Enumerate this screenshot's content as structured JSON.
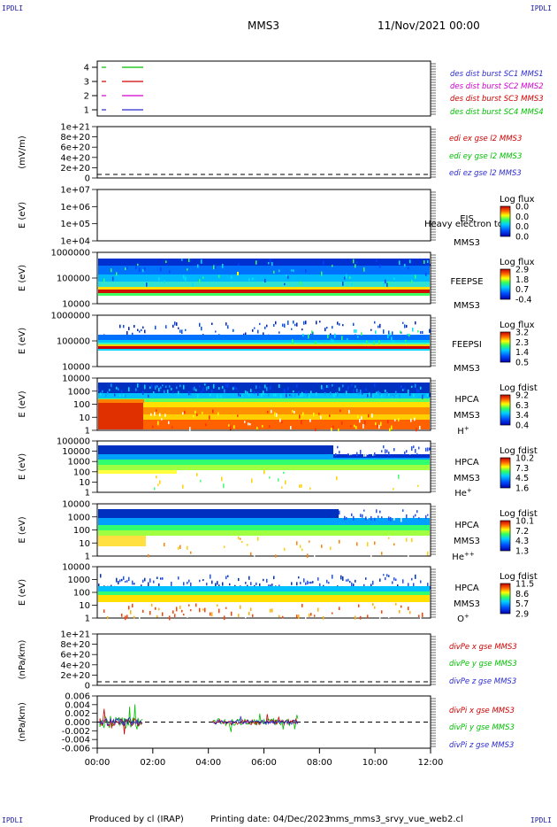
{
  "corners": {
    "tl": "IPDLI",
    "tr": "IPDLI",
    "bl": "IPDLI",
    "br": "IPDLI"
  },
  "header": {
    "spacecraft": "MMS3",
    "date": "11/Nov/2021 00:00"
  },
  "footer": {
    "produced": "Produced by cl (IRAP)",
    "printed": "Printing date: 04/Dec/2023",
    "file": "mms_mms3_srvy_vue_web2.cl"
  },
  "xaxis": {
    "ticks": [
      "00:00",
      "02:00",
      "04:00",
      "06:00",
      "08:00",
      "10:00",
      "12:00"
    ]
  },
  "colors": {
    "c1": "#2b2bd0",
    "c2": "#d000d0",
    "c3": "#d00000",
    "c4": "#00c000",
    "black": "#000000"
  },
  "chart_data": [
    {
      "type": "line",
      "id": "des_dist",
      "yticks": [
        "4",
        "3",
        "2",
        "1"
      ],
      "legend": [
        "des dist burst SC1 MMS1",
        "des dist burst SC2 MMS2",
        "des dist burst SC3 MMS3",
        "des dist burst SC4 MMS4"
      ],
      "legend_colors": [
        "#2b2bd0",
        "#d000d0",
        "#d00000",
        "#00c000"
      ],
      "series": [
        {
          "name": "des dist burst SC1 MMS1",
          "y": 1
        },
        {
          "name": "des dist burst SC2 MMS2",
          "y": 2
        },
        {
          "name": "des dist burst SC3 MMS3",
          "y": 3
        },
        {
          "name": "des dist burst SC4 MMS4",
          "y": 4
        }
      ]
    },
    {
      "type": "line",
      "id": "edi",
      "ylabel": "(mV/m)",
      "yticks": [
        "1e+21",
        "8e+20",
        "6e+20",
        "4e+20",
        "2e+20",
        "0"
      ],
      "legend": [
        "edi ex gse l2 MMS3",
        "edi ey gse l2 MMS3",
        "edi ez gse l2 MMS3"
      ],
      "legend_colors": [
        "#d00000",
        "#00c000",
        "#2b2bd0"
      ]
    },
    {
      "type": "heatmap",
      "id": "eis",
      "ylabel": "E (eV)",
      "yticks": [
        "1e+07",
        "1e+06",
        "1e+05",
        "1e+04"
      ],
      "label": [
        "EIS",
        "MMS3"
      ],
      "overlay_text": "Heavy electron to",
      "cbar_title": "Log flux",
      "cbar_ticks": [
        "0.0",
        "0.0",
        "0.0",
        "0.0"
      ]
    },
    {
      "type": "heatmap",
      "id": "feepse",
      "ylabel": "E (eV)",
      "yticks": [
        "1000000",
        "100000",
        "10000"
      ],
      "label": [
        "FEEPSE",
        "MMS3"
      ],
      "cbar_title": "Log flux",
      "cbar_ticks": [
        "2.9",
        "1.8",
        "0.7",
        "-0.4"
      ]
    },
    {
      "type": "heatmap",
      "id": "feepsi",
      "ylabel": "E (eV)",
      "yticks": [
        "1000000",
        "100000",
        "10000"
      ],
      "label": [
        "FEEPSI",
        "MMS3"
      ],
      "cbar_title": "Log flux",
      "cbar_ticks": [
        "3.2",
        "2.3",
        "1.4",
        "0.5"
      ]
    },
    {
      "type": "heatmap",
      "id": "hpca_h",
      "ylabel": "E (eV)",
      "yticks": [
        "10000",
        "1000",
        "100",
        "10",
        "1"
      ],
      "label": [
        "HPCA",
        "MMS3",
        "H+"
      ],
      "cbar_title": "Log fdist",
      "cbar_ticks": [
        "9.2",
        "6.3",
        "3.4",
        "0.4"
      ]
    },
    {
      "type": "heatmap",
      "id": "hpca_he",
      "ylabel": "E (eV)",
      "yticks": [
        "100000",
        "10000",
        "1000",
        "100",
        "10",
        "1"
      ],
      "label": [
        "HPCA",
        "MMS3",
        "He+"
      ],
      "cbar_title": "Log fdist",
      "cbar_ticks": [
        "10.2",
        "7.3",
        "4.5",
        "1.6"
      ]
    },
    {
      "type": "heatmap",
      "id": "hpca_hepp",
      "ylabel": "E (eV)",
      "yticks": [
        "10000",
        "1000",
        "100",
        "10",
        "1"
      ],
      "label": [
        "HPCA",
        "MMS3",
        "He++"
      ],
      "cbar_title": "Log fdist",
      "cbar_ticks": [
        "10.1",
        "7.2",
        "4.3",
        "1.3"
      ]
    },
    {
      "type": "heatmap",
      "id": "hpca_o",
      "ylabel": "E (eV)",
      "yticks": [
        "10000",
        "1000",
        "100",
        "10",
        "1"
      ],
      "label": [
        "HPCA",
        "MMS3",
        "O+"
      ],
      "cbar_title": "Log fdist",
      "cbar_ticks": [
        "11.5",
        "8.6",
        "5.7",
        "2.9"
      ]
    },
    {
      "type": "line",
      "id": "divpe",
      "ylabel": "(nPa/km)",
      "yticks": [
        "1e+21",
        "8e+20",
        "6e+20",
        "4e+20",
        "2e+20",
        "0"
      ],
      "legend": [
        "divPe x gse MMS3",
        "divPe y gse MMS3",
        "divPe z gse MMS3"
      ],
      "legend_colors": [
        "#d00000",
        "#00c000",
        "#2b2bd0"
      ]
    },
    {
      "type": "line",
      "id": "divpi",
      "ylabel": "(nPa/km)",
      "yticks": [
        "0.006",
        "0.004",
        "0.002",
        "0.000",
        "-0.002",
        "-0.004",
        "-0.006"
      ],
      "legend": [
        "divPi x gse MMS3",
        "divPi y gse MMS3",
        "divPi z gse MMS3"
      ],
      "legend_colors": [
        "#d00000",
        "#00c000",
        "#2b2bd0"
      ]
    }
  ]
}
